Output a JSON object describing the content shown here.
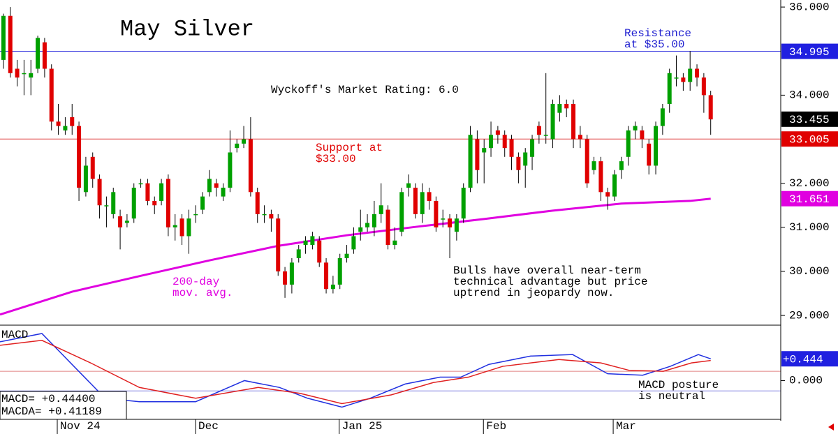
{
  "chart_data": {
    "type": "candlestick",
    "title": "May Silver",
    "rating": "Wyckoff's Market Rating: 6.0",
    "annotations": [
      {
        "lines": [
          "Resistance",
          "at $35.00"
        ],
        "color": "#2020d0"
      },
      {
        "lines": [
          "Support at",
          "$33.00"
        ],
        "color": "#e00000"
      },
      {
        "lines": [
          "200-day",
          "mov. avg."
        ],
        "color": "#e000e0"
      },
      {
        "lines": [
          "Bulls have overall near-term",
          "technical advantage but price",
          "uptrend in jeopardy now."
        ],
        "color": "#000000"
      }
    ],
    "xlim": [
      -0.5,
      113.2
    ],
    "ylim": [
      28.78,
      36.16
    ],
    "yticks": [
      {
        "value": 29,
        "label": "29.000"
      },
      {
        "value": 30,
        "label": "30.000"
      },
      {
        "value": 31,
        "label": "31.000"
      },
      {
        "value": 32,
        "label": "32.000"
      },
      {
        "value": 34,
        "label": "34.000"
      },
      {
        "value": 36,
        "label": "36.000"
      }
    ],
    "xticks": [
      {
        "value": 7.84,
        "label": "Nov 24"
      },
      {
        "value": 27.98,
        "label": "Dec"
      },
      {
        "value": 48.9,
        "label": "Jan 25"
      },
      {
        "value": 69.9,
        "label": "Feb"
      },
      {
        "value": 88.8,
        "label": "Mar"
      }
    ],
    "price_labels": [
      {
        "value": 34.995,
        "label": "34.995",
        "color": "#2020e0"
      },
      {
        "value": 33.455,
        "label": "33.455",
        "color": "#000000"
      },
      {
        "value": 33.005,
        "label": "33.005",
        "color": "#e00000"
      },
      {
        "value": 31.651,
        "label": "31.651",
        "color": "#e000e0"
      }
    ],
    "levels": [
      {
        "value": 34.995,
        "color": "#4040e0"
      },
      {
        "value": 33.005,
        "color": "#e04040"
      }
    ],
    "up_color": "#00a000",
    "down_color": "#e00000",
    "x": [
      0,
      1,
      2,
      3,
      4,
      5,
      6,
      7,
      8,
      9,
      10,
      11,
      12,
      13,
      14,
      15,
      16,
      17,
      18,
      19,
      20,
      21,
      22,
      23,
      24,
      25,
      26,
      27,
      28,
      29,
      30,
      31,
      32,
      33,
      34,
      35,
      36,
      37,
      38,
      39,
      40,
      41,
      42,
      43,
      44,
      45,
      46,
      47,
      48,
      49,
      50,
      51,
      52,
      53,
      54,
      55,
      56,
      57,
      58,
      59,
      60,
      61,
      62,
      63,
      64,
      65,
      66,
      67,
      68,
      69,
      70,
      71,
      72,
      73,
      74,
      75,
      76,
      77,
      78,
      79,
      80,
      81,
      82,
      83,
      84,
      85,
      86,
      87,
      88,
      89,
      90,
      91,
      92,
      93,
      94,
      95,
      96,
      97,
      98,
      99,
      100,
      101,
      102,
      103
    ],
    "open": [
      34.8,
      35.8,
      34.6,
      34.5,
      34.4,
      34.6,
      35.2,
      34.6,
      33.4,
      33.2,
      33.5,
      33.3,
      31.8,
      32.6,
      32.1,
      31.5,
      31.3,
      31.25,
      31.1,
      31.2,
      31.98,
      32.0,
      31.6,
      31.6,
      32.1,
      31.0,
      31.2,
      30.8,
      31.3,
      31.4,
      31.8,
      32.0,
      31.7,
      31.9,
      32.8,
      32.9,
      33.0,
      31.8,
      31.3,
      31.3,
      31.2,
      30.0,
      29.7,
      30.3,
      30.6,
      30.6,
      30.7,
      30.2,
      29.6,
      29.7,
      30.3,
      30.5,
      30.9,
      31.0,
      31.0,
      31.3,
      31.4,
      30.6,
      30.9,
      31.9,
      31.9,
      31.3,
      31.8,
      31.6,
      31.2,
      31.2,
      30.9,
      31.2,
      31.9,
      33.0,
      32.7,
      32.8,
      33.2,
      33.1,
      33.0,
      32.6,
      32.4,
      32.6,
      33.3,
      33.1,
      33.0,
      33.6,
      33.8,
      33.8,
      33.1,
      33.0,
      32.3,
      32.5,
      31.8,
      31.7,
      32.3,
      32.6,
      33.2,
      33.2,
      32.9,
      32.4,
      33.3,
      33.8,
      34.4,
      34.4,
      34.3,
      34.6,
      34.4,
      34.0
    ],
    "high": [
      35.85,
      36.0,
      34.8,
      34.8,
      34.8,
      35.35,
      35.3,
      34.7,
      33.8,
      33.5,
      33.8,
      33.4,
      32.6,
      32.7,
      32.2,
      31.7,
      31.9,
      31.4,
      31.3,
      32.0,
      32.1,
      32.1,
      31.7,
      32.1,
      32.2,
      31.3,
      31.3,
      31.4,
      31.5,
      31.8,
      32.3,
      32.1,
      32.0,
      33.2,
      33.0,
      33.3,
      33.5,
      31.9,
      31.5,
      31.4,
      31.3,
      30.1,
      30.3,
      30.6,
      30.8,
      30.9,
      30.8,
      30.3,
      29.9,
      30.4,
      30.6,
      31.0,
      31.4,
      31.3,
      31.6,
      32.0,
      31.5,
      31.0,
      31.9,
      32.2,
      32.0,
      32.0,
      31.9,
      31.7,
      31.4,
      31.3,
      31.3,
      32.0,
      33.3,
      33.2,
      33.0,
      33.4,
      33.3,
      33.2,
      33.1,
      32.7,
      32.8,
      33.1,
      33.4,
      34.5,
      33.9,
      34.0,
      33.9,
      33.9,
      33.3,
      33.1,
      32.6,
      32.6,
      31.9,
      32.3,
      32.6,
      33.3,
      33.4,
      33.3,
      33.0,
      33.4,
      33.8,
      34.6,
      34.9,
      34.5,
      35.0,
      34.7,
      34.5,
      34.1
    ],
    "low": [
      34.6,
      34.4,
      34.2,
      34.0,
      34.0,
      34.5,
      34.4,
      33.2,
      33.1,
      33.1,
      33.1,
      31.6,
      31.7,
      31.9,
      31.2,
      31.0,
      31.2,
      30.5,
      31.0,
      31.1,
      31.9,
      31.5,
      31.3,
      31.5,
      30.8,
      30.7,
      30.6,
      30.4,
      31.1,
      31.3,
      31.7,
      31.7,
      31.6,
      31.8,
      32.7,
      32.8,
      31.7,
      31.1,
      31.1,
      30.9,
      29.9,
      29.4,
      29.5,
      30.2,
      30.4,
      30.5,
      30.1,
      29.5,
      29.5,
      29.6,
      30.2,
      30.4,
      30.7,
      30.9,
      30.8,
      31.1,
      30.5,
      30.5,
      30.8,
      31.7,
      31.2,
      31.1,
      31.4,
      30.9,
      31.0,
      30.3,
      30.7,
      31.1,
      31.8,
      32.0,
      32.0,
      32.6,
      32.9,
      32.6,
      32.3,
      32.0,
      31.9,
      32.3,
      32.9,
      32.9,
      32.8,
      33.4,
      33.5,
      32.8,
      32.8,
      31.9,
      32.2,
      31.6,
      31.4,
      31.6,
      32.1,
      32.4,
      33.0,
      32.8,
      32.2,
      32.2,
      33.1,
      33.6,
      34.2,
      34.1,
      34.1,
      34.2,
      33.6,
      33.1
    ],
    "close": [
      35.8,
      34.5,
      34.4,
      34.5,
      34.5,
      35.3,
      34.6,
      33.4,
      33.3,
      33.3,
      33.3,
      31.9,
      32.4,
      32.1,
      31.5,
      31.5,
      31.8,
      31.0,
      31.15,
      31.9,
      32.0,
      31.6,
      31.5,
      32.0,
      31.0,
      31.05,
      30.8,
      31.2,
      31.3,
      31.7,
      32.1,
      31.9,
      31.9,
      32.7,
      32.9,
      33.0,
      31.8,
      31.3,
      31.3,
      31.2,
      30.0,
      29.7,
      30.2,
      30.5,
      30.7,
      30.8,
      30.2,
      29.6,
      29.7,
      30.3,
      30.4,
      30.8,
      31.0,
      31.1,
      31.3,
      31.5,
      30.6,
      30.7,
      31.8,
      32.0,
      31.3,
      31.8,
      31.6,
      31.0,
      31.2,
      31.0,
      31.2,
      31.9,
      33.1,
      32.3,
      32.8,
      33.1,
      33.1,
      32.8,
      32.6,
      32.3,
      32.7,
      33.0,
      33.1,
      33.1,
      33.8,
      33.8,
      33.7,
      33.0,
      33.0,
      32.0,
      32.5,
      31.8,
      31.7,
      32.2,
      32.5,
      33.2,
      33.3,
      33.0,
      32.4,
      33.3,
      33.7,
      34.5,
      34.4,
      34.3,
      34.6,
      34.4,
      34.0,
      33.45
    ],
    "moving_average": {
      "color": "#e000e0",
      "x": [
        -0.5,
        10,
        20,
        30,
        40,
        50,
        60,
        70,
        80,
        90,
        100,
        103
      ],
      "values": [
        29.02,
        29.54,
        29.9,
        30.25,
        30.58,
        30.82,
        31.01,
        31.19,
        31.38,
        31.54,
        31.6,
        31.65
      ]
    },
    "macd": {
      "label": "MACD",
      "note": [
        "MACD posture",
        "is neutral"
      ],
      "readout": [
        "MACD=  +0.44400",
        "MACDA= +0.41189"
      ],
      "ylim": [
        -0.79,
        1.13
      ],
      "yticks": [
        {
          "value": 0,
          "label": "0.000"
        }
      ],
      "value_label": {
        "value": 0.444,
        "label": "+0.444",
        "color": "#2020e0"
      },
      "levels": [
        {
          "value": 0.19,
          "color": "#e08080"
        },
        {
          "value": -0.21,
          "color": "#8080e0"
        }
      ],
      "series": [
        {
          "color": "#2030e0",
          "x": [
            -0.5,
            5.6,
            14.8,
            19.8,
            28,
            35.1,
            40.2,
            44.3,
            49.3,
            53.4,
            58.5,
            63.6,
            66.6,
            70.7,
            76.8,
            82.9,
            88,
            93.1,
            97.1,
            101.2,
            103
          ],
          "values": [
            0.79,
            0.96,
            -0.36,
            -0.43,
            -0.43,
            0.0,
            -0.14,
            -0.36,
            -0.54,
            -0.36,
            -0.07,
            0.07,
            0.07,
            0.33,
            0.5,
            0.53,
            0.14,
            0.11,
            0.29,
            0.53,
            0.444
          ]
        },
        {
          "color": "#e02020",
          "x": [
            -0.5,
            5.6,
            12.7,
            19.8,
            28,
            37.1,
            43.2,
            49.3,
            56.5,
            62.6,
            67.7,
            72.7,
            80.9,
            87,
            91.1,
            96.1,
            100.2,
            103
          ],
          "values": [
            0.72,
            0.82,
            0.36,
            -0.14,
            -0.36,
            -0.14,
            -0.26,
            -0.47,
            -0.29,
            -0.04,
            0.07,
            0.29,
            0.43,
            0.36,
            0.21,
            0.19,
            0.36,
            0.41
          ]
        }
      ]
    }
  }
}
